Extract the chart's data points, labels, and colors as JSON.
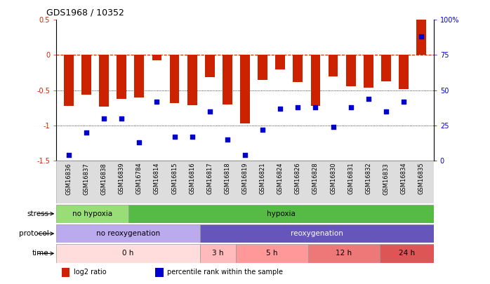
{
  "title": "GDS1968 / 10352",
  "samples": [
    "GSM16836",
    "GSM16837",
    "GSM16838",
    "GSM16839",
    "GSM16784",
    "GSM16814",
    "GSM16815",
    "GSM16816",
    "GSM16817",
    "GSM16818",
    "GSM16819",
    "GSM16821",
    "GSM16824",
    "GSM16826",
    "GSM16828",
    "GSM16830",
    "GSM16831",
    "GSM16832",
    "GSM16833",
    "GSM16834",
    "GSM16835"
  ],
  "log2_ratio": [
    -0.72,
    -0.56,
    -0.73,
    -0.62,
    -0.6,
    -0.08,
    -0.68,
    -0.71,
    -0.31,
    -0.7,
    -0.97,
    -0.35,
    -0.2,
    -0.38,
    -0.72,
    -0.3,
    -0.44,
    -0.46,
    -0.37,
    -0.48,
    0.52
  ],
  "percentile": [
    4,
    20,
    30,
    30,
    13,
    42,
    17,
    17,
    35,
    15,
    4,
    22,
    37,
    38,
    38,
    24,
    38,
    44,
    35,
    42,
    88
  ],
  "ylim_left": [
    -1.5,
    0.5
  ],
  "ylim_right": [
    0,
    100
  ],
  "bar_color": "#CC2200",
  "dot_color": "#0000CC",
  "hline_color": "#CC2200",
  "dotted_line_color": "#000000",
  "stress_no_hypoxia_count": 4,
  "stress_hypoxia_count": 17,
  "stress_no_hypoxia_color": "#99DD77",
  "stress_hypoxia_color": "#55BB44",
  "protocol_no_reoxy_count": 8,
  "protocol_reoxy_count": 13,
  "protocol_no_reoxy_color": "#BBAAEE",
  "protocol_reoxy_color": "#6655BB",
  "time_groups": [
    {
      "label": "0 h",
      "count": 8,
      "color": "#FFDDDD"
    },
    {
      "label": "3 h",
      "count": 2,
      "color": "#FFBBBB"
    },
    {
      "label": "5 h",
      "count": 4,
      "color": "#FF9999"
    },
    {
      "label": "12 h",
      "count": 4,
      "color": "#EE7777"
    },
    {
      "label": "24 h",
      "count": 3,
      "color": "#DD5555"
    }
  ],
  "legend_labels": [
    "log2 ratio",
    "percentile rank within the sample"
  ],
  "legend_colors": [
    "#CC2200",
    "#0000CC"
  ],
  "bg_color": "#FFFFFF",
  "tick_label_fontsize": 6.0,
  "bar_width": 0.55
}
